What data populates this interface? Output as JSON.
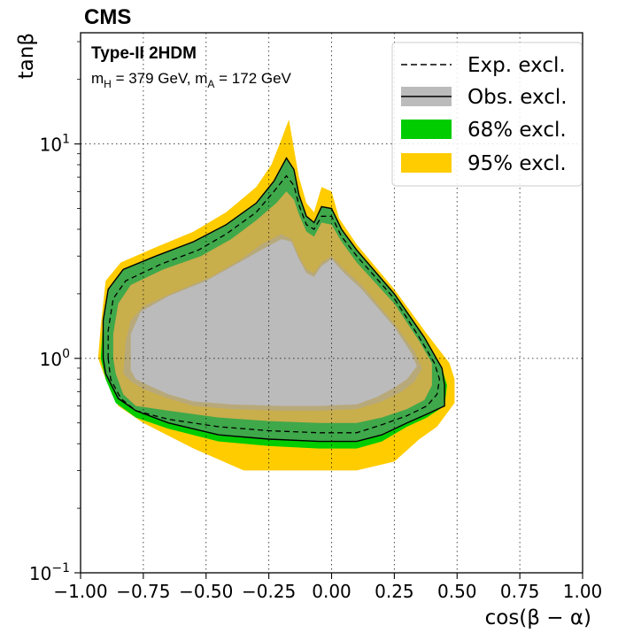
{
  "chart_data": {
    "type": "area",
    "experiment": "CMS",
    "model": "Type-II 2HDM",
    "mass_text": {
      "h_sym": "m",
      "h_sub": "H",
      "h_val": " = 379 GeV, ",
      "a_sym": "m",
      "a_sub": "A",
      "a_val": " = 172 GeV"
    },
    "xlabel": "cos(β − α)",
    "ylabel": "tanβ",
    "xlim": [
      -1.0,
      1.0
    ],
    "ylim": [
      0.1,
      33.0
    ],
    "yscale": "log",
    "grid": true,
    "legend_position": "top-right",
    "x_ticks": [
      "−1.00",
      "−0.75",
      "−0.50",
      "−0.25",
      "0.00",
      "0.25",
      "0.50",
      "0.75",
      "1.00"
    ],
    "x_tick_values": [
      -1.0,
      -0.75,
      -0.5,
      -0.25,
      0.0,
      0.25,
      0.5,
      0.75,
      1.0
    ],
    "y_ticks": [
      {
        "value": 0.1,
        "base": "10",
        "exp": "−1"
      },
      {
        "value": 1,
        "base": "10",
        "exp": "0"
      },
      {
        "value": 10,
        "base": "10",
        "exp": "1"
      }
    ],
    "colors": {
      "band95": "#ffcc00",
      "band68": "#00cc00",
      "obs_fill": "#bbbbbb",
      "obs_line": "#000000",
      "exp_line": "#000000"
    },
    "legend": [
      {
        "key": "exp",
        "label": "Exp. excl."
      },
      {
        "key": "obs",
        "label": "Obs. excl."
      },
      {
        "key": "b68",
        "label": "68% excl."
      },
      {
        "key": "b95",
        "label": "95% excl."
      }
    ],
    "series": [
      {
        "name": "95% excl.",
        "kind": "band",
        "points": [
          [
            -0.92,
            1.4
          ],
          [
            -0.9,
            2.3
          ],
          [
            -0.84,
            2.8
          ],
          [
            -0.7,
            3.3
          ],
          [
            -0.55,
            3.9
          ],
          [
            -0.42,
            4.8
          ],
          [
            -0.3,
            6.3
          ],
          [
            -0.24,
            8.0
          ],
          [
            -0.2,
            10.5
          ],
          [
            -0.17,
            13.0
          ],
          [
            -0.15,
            9.5
          ],
          [
            -0.13,
            7.0
          ],
          [
            -0.1,
            5.3
          ],
          [
            -0.07,
            4.8
          ],
          [
            -0.04,
            6.3
          ],
          [
            0.0,
            6.0
          ],
          [
            0.03,
            4.5
          ],
          [
            0.1,
            3.4
          ],
          [
            0.25,
            2.1
          ],
          [
            0.38,
            1.3
          ],
          [
            0.47,
            0.95
          ],
          [
            0.49,
            0.8
          ],
          [
            0.49,
            0.62
          ],
          [
            0.42,
            0.48
          ],
          [
            0.35,
            0.42
          ],
          [
            0.25,
            0.33
          ],
          [
            0.1,
            0.3
          ],
          [
            -0.15,
            0.3
          ],
          [
            -0.35,
            0.3
          ],
          [
            -0.55,
            0.38
          ],
          [
            -0.75,
            0.5
          ],
          [
            -0.85,
            0.6
          ],
          [
            -0.9,
            0.8
          ],
          [
            -0.93,
            1.0
          ]
        ]
      },
      {
        "name": "68% excl.",
        "kind": "band",
        "points": [
          [
            -0.91,
            1.5
          ],
          [
            -0.89,
            2.1
          ],
          [
            -0.83,
            2.6
          ],
          [
            -0.7,
            3.0
          ],
          [
            -0.55,
            3.5
          ],
          [
            -0.42,
            4.2
          ],
          [
            -0.3,
            5.3
          ],
          [
            -0.23,
            6.7
          ],
          [
            -0.18,
            8.6
          ],
          [
            -0.15,
            7.6
          ],
          [
            -0.13,
            5.8
          ],
          [
            -0.1,
            4.6
          ],
          [
            -0.07,
            4.3
          ],
          [
            -0.04,
            5.1
          ],
          [
            0.0,
            5.0
          ],
          [
            0.04,
            4.0
          ],
          [
            0.1,
            3.2
          ],
          [
            0.25,
            2.0
          ],
          [
            0.37,
            1.25
          ],
          [
            0.44,
            0.9
          ],
          [
            0.46,
            0.75
          ],
          [
            0.45,
            0.6
          ],
          [
            0.38,
            0.53
          ],
          [
            0.3,
            0.48
          ],
          [
            0.2,
            0.41
          ],
          [
            0.1,
            0.38
          ],
          [
            -0.05,
            0.38
          ],
          [
            -0.25,
            0.39
          ],
          [
            -0.45,
            0.41
          ],
          [
            -0.65,
            0.47
          ],
          [
            -0.78,
            0.53
          ],
          [
            -0.86,
            0.62
          ],
          [
            -0.9,
            0.8
          ],
          [
            -0.92,
            1.0
          ]
        ]
      },
      {
        "name": "inner 68% edge",
        "kind": "band_inner",
        "points": [
          [
            -0.87,
            1.3
          ],
          [
            -0.85,
            1.8
          ],
          [
            -0.8,
            2.2
          ],
          [
            -0.67,
            2.6
          ],
          [
            -0.52,
            3.0
          ],
          [
            -0.4,
            3.6
          ],
          [
            -0.3,
            4.4
          ],
          [
            -0.22,
            5.3
          ],
          [
            -0.18,
            6.0
          ],
          [
            -0.15,
            5.5
          ],
          [
            -0.13,
            4.7
          ],
          [
            -0.1,
            3.9
          ],
          [
            -0.07,
            3.7
          ],
          [
            -0.04,
            4.3
          ],
          [
            0.0,
            4.2
          ],
          [
            0.04,
            3.5
          ],
          [
            0.1,
            2.8
          ],
          [
            0.25,
            1.8
          ],
          [
            0.35,
            1.2
          ],
          [
            0.4,
            0.95
          ],
          [
            0.4,
            0.75
          ],
          [
            0.37,
            0.64
          ],
          [
            0.3,
            0.58
          ],
          [
            0.2,
            0.53
          ],
          [
            0.1,
            0.5
          ],
          [
            -0.05,
            0.5
          ],
          [
            -0.25,
            0.51
          ],
          [
            -0.45,
            0.53
          ],
          [
            -0.65,
            0.57
          ],
          [
            -0.78,
            0.6
          ],
          [
            -0.83,
            0.68
          ],
          [
            -0.86,
            0.85
          ],
          [
            -0.87,
            1.0
          ]
        ]
      },
      {
        "name": "Exp. excl.",
        "kind": "dashed",
        "points": [
          [
            -0.89,
            1.0
          ],
          [
            -0.89,
            1.35
          ],
          [
            -0.87,
            1.9
          ],
          [
            -0.82,
            2.3
          ],
          [
            -0.68,
            2.75
          ],
          [
            -0.53,
            3.2
          ],
          [
            -0.42,
            3.8
          ],
          [
            -0.3,
            4.8
          ],
          [
            -0.23,
            6.0
          ],
          [
            -0.18,
            7.1
          ],
          [
            -0.15,
            6.4
          ],
          [
            -0.13,
            5.2
          ],
          [
            -0.1,
            4.2
          ],
          [
            -0.07,
            4.0
          ],
          [
            -0.04,
            4.6
          ],
          [
            0.0,
            4.6
          ],
          [
            0.04,
            3.7
          ],
          [
            0.1,
            3.0
          ],
          [
            0.25,
            1.9
          ],
          [
            0.35,
            1.25
          ],
          [
            0.41,
            0.95
          ],
          [
            0.43,
            0.8
          ],
          [
            0.42,
            0.68
          ],
          [
            0.38,
            0.6
          ],
          [
            0.3,
            0.54
          ],
          [
            0.2,
            0.49
          ],
          [
            0.1,
            0.45
          ],
          [
            -0.05,
            0.45
          ],
          [
            -0.25,
            0.46
          ],
          [
            -0.45,
            0.48
          ],
          [
            -0.65,
            0.52
          ],
          [
            -0.78,
            0.57
          ],
          [
            -0.84,
            0.65
          ],
          [
            -0.88,
            0.8
          ],
          [
            -0.89,
            1.0
          ]
        ]
      },
      {
        "name": "Obs. excl.",
        "kind": "observed",
        "points": [
          [
            -0.91,
            1.0
          ],
          [
            -0.91,
            1.5
          ],
          [
            -0.89,
            2.1
          ],
          [
            -0.83,
            2.6
          ],
          [
            -0.7,
            3.0
          ],
          [
            -0.55,
            3.5
          ],
          [
            -0.42,
            4.2
          ],
          [
            -0.3,
            5.3
          ],
          [
            -0.23,
            6.7
          ],
          [
            -0.18,
            8.6
          ],
          [
            -0.15,
            7.6
          ],
          [
            -0.13,
            5.8
          ],
          [
            -0.1,
            4.6
          ],
          [
            -0.07,
            4.3
          ],
          [
            -0.04,
            5.1
          ],
          [
            0.0,
            5.0
          ],
          [
            0.04,
            4.0
          ],
          [
            0.1,
            3.2
          ],
          [
            0.25,
            2.0
          ],
          [
            0.37,
            1.25
          ],
          [
            0.44,
            0.9
          ],
          [
            0.45,
            0.75
          ],
          [
            0.45,
            0.6
          ],
          [
            0.38,
            0.55
          ],
          [
            0.3,
            0.5
          ],
          [
            0.2,
            0.44
          ],
          [
            0.1,
            0.41
          ],
          [
            -0.05,
            0.41
          ],
          [
            -0.25,
            0.42
          ],
          [
            -0.45,
            0.44
          ],
          [
            -0.65,
            0.5
          ],
          [
            -0.78,
            0.57
          ],
          [
            -0.85,
            0.65
          ],
          [
            -0.9,
            0.85
          ],
          [
            -0.91,
            1.0
          ]
        ]
      },
      {
        "name": "Obs. excl. inner",
        "kind": "observed_inner",
        "points": [
          [
            -0.83,
            0.85
          ],
          [
            -0.82,
            1.2
          ],
          [
            -0.8,
            1.5
          ],
          [
            -0.75,
            1.75
          ],
          [
            -0.62,
            2.05
          ],
          [
            -0.48,
            2.4
          ],
          [
            -0.36,
            2.9
          ],
          [
            -0.28,
            3.4
          ],
          [
            -0.2,
            3.8
          ],
          [
            -0.16,
            3.6
          ],
          [
            -0.13,
            3.0
          ],
          [
            -0.1,
            2.6
          ],
          [
            -0.07,
            2.5
          ],
          [
            -0.04,
            2.8
          ],
          [
            0.0,
            3.0
          ],
          [
            0.05,
            2.6
          ],
          [
            0.12,
            2.2
          ],
          [
            0.25,
            1.45
          ],
          [
            0.33,
            1.08
          ],
          [
            0.36,
            0.9
          ],
          [
            0.33,
            0.78
          ],
          [
            0.28,
            0.7
          ],
          [
            0.2,
            0.63
          ],
          [
            0.1,
            0.58
          ],
          [
            -0.05,
            0.57
          ],
          [
            -0.2,
            0.57
          ],
          [
            -0.4,
            0.58
          ],
          [
            -0.55,
            0.6
          ],
          [
            -0.65,
            0.65
          ],
          [
            -0.75,
            0.72
          ],
          [
            -0.8,
            0.78
          ]
        ]
      },
      {
        "name": "Obs. fill",
        "kind": "obs_fill",
        "points": [
          [
            -0.8,
            0.88
          ],
          [
            -0.8,
            1.3
          ],
          [
            -0.76,
            1.65
          ],
          [
            -0.65,
            1.95
          ],
          [
            -0.5,
            2.3
          ],
          [
            -0.38,
            2.75
          ],
          [
            -0.28,
            3.2
          ],
          [
            -0.2,
            3.6
          ],
          [
            -0.16,
            3.5
          ],
          [
            -0.13,
            2.9
          ],
          [
            -0.1,
            2.5
          ],
          [
            -0.07,
            2.4
          ],
          [
            -0.04,
            2.7
          ],
          [
            0.0,
            2.9
          ],
          [
            0.05,
            2.5
          ],
          [
            0.12,
            2.1
          ],
          [
            0.25,
            1.4
          ],
          [
            0.32,
            1.05
          ],
          [
            0.34,
            0.92
          ],
          [
            0.3,
            0.8
          ],
          [
            0.25,
            0.73
          ],
          [
            0.18,
            0.66
          ],
          [
            0.1,
            0.61
          ],
          [
            -0.05,
            0.6
          ],
          [
            -0.2,
            0.6
          ],
          [
            -0.4,
            0.61
          ],
          [
            -0.55,
            0.63
          ],
          [
            -0.65,
            0.68
          ],
          [
            -0.73,
            0.75
          ],
          [
            -0.78,
            0.8
          ]
        ]
      }
    ]
  }
}
